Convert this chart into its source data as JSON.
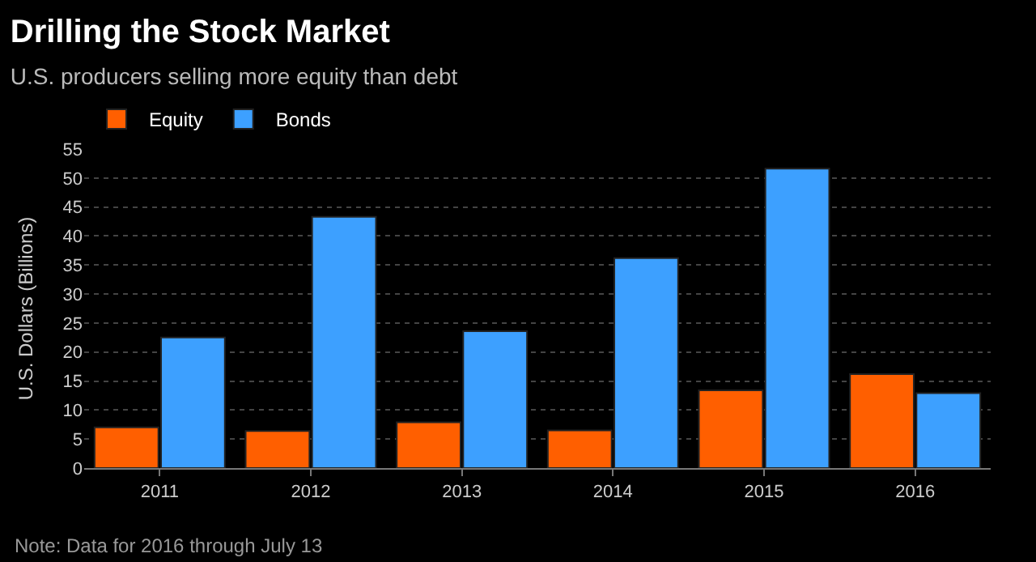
{
  "chart_data": {
    "type": "bar",
    "title": "Drilling the Stock Market",
    "subtitle": "U.S. producers selling more equity than debt",
    "ylabel": "U.S. Dollars (Billions)",
    "categories": [
      "2011",
      "2012",
      "2013",
      "2014",
      "2015",
      "2016"
    ],
    "series": [
      {
        "name": "Equity",
        "color": "#ff5f00",
        "values": [
          7.0,
          6.4,
          7.9,
          6.5,
          13.4,
          16.2
        ]
      },
      {
        "name": "Bonds",
        "color": "#3da0ff",
        "values": [
          22.5,
          43.3,
          23.6,
          36.2,
          51.6,
          12.9
        ]
      }
    ],
    "ylim": [
      0,
      55
    ],
    "yticks": [
      0,
      5,
      10,
      15,
      20,
      25,
      30,
      35,
      40,
      45,
      50,
      55
    ],
    "grid": "y",
    "legend": "top left",
    "annotations": [
      "Note: Data for 2016 through July 13"
    ]
  }
}
